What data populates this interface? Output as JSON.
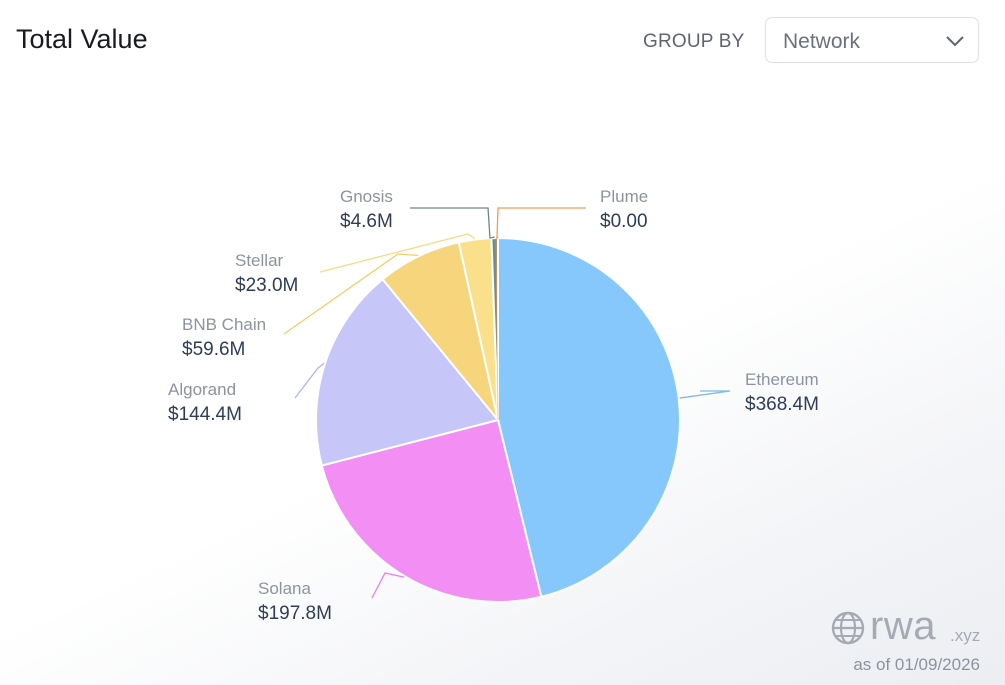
{
  "header": {
    "title": "Total Value"
  },
  "group_by": {
    "label": "GROUP BY",
    "selected": "Network"
  },
  "chart_data": {
    "type": "pie",
    "start_angle_deg": 0,
    "direction": "clockwise",
    "slices": [
      {
        "name": "Ethereum",
        "value": 368.4,
        "label": "$368.4M",
        "color": "#87c8fc",
        "line": "#7fb8ea"
      },
      {
        "name": "Solana",
        "value": 197.8,
        "label": "$197.8M",
        "color": "#f38ef5",
        "line": "#ea7ee8"
      },
      {
        "name": "Algorand",
        "value": 144.4,
        "label": "$144.4M",
        "color": "#c6c6f8",
        "line": "#b2b4ea"
      },
      {
        "name": "BNB Chain",
        "value": 59.6,
        "label": "$59.6M",
        "color": "#f6d57c",
        "line": "#ecd06a"
      },
      {
        "name": "Stellar",
        "value": 23.0,
        "label": "$23.0M",
        "color": "#fbe08c",
        "line": "#f4dc85"
      },
      {
        "name": "Gnosis",
        "value": 4.6,
        "label": "$4.6M",
        "color": "#6e8f8e",
        "line": "#6e8686"
      },
      {
        "name": "Plume",
        "value": 0.0,
        "label": "$0.00",
        "color": "#f29a5c",
        "line": "#f29a5c"
      }
    ]
  },
  "branding": {
    "name": "rwa",
    "tld": ".xyz",
    "icon": "globe-icon",
    "as_of": "as of 01/09/2026"
  }
}
